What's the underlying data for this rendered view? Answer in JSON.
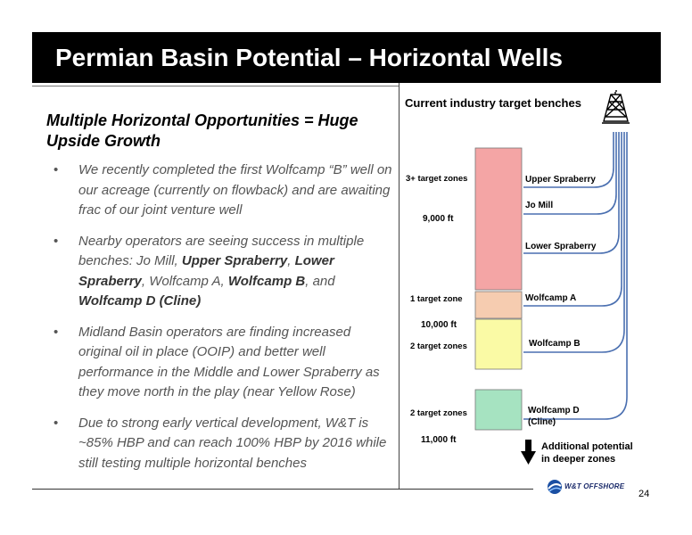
{
  "header": {
    "title": "Permian Basin Potential – Horizontal Wells"
  },
  "left": {
    "subtitle": "Multiple Horizontal Opportunities = Huge Upside Growth",
    "bullets": [
      {
        "text": "We recently completed the first Wolfcamp “B” well on our acreage (currently on flowback) and are awaiting frac of our joint venture well"
      },
      {
        "t1": "Nearby operators are seeing success in multiple benches:    Jo Mill, ",
        "b1": "Upper Spraberry",
        "t2": ", ",
        "b2": "Lower Spraberry",
        "t3": ", Wolfcamp A, ",
        "b3": "Wolfcamp B",
        "t4": ", and ",
        "b4": "Wolfcamp D (Cline)"
      },
      {
        "text": "Midland Basin operators are finding increased original oil in place (OOIP) and better well performance in the Middle and Lower Spraberry as they move north in the play (near Yellow Rose)"
      },
      {
        "text": "Due to strong early vertical development, W&T is ~85% HBP and can reach 100% HBP by 2016 while still testing multiple horizontal benches"
      }
    ]
  },
  "diagram": {
    "title": "Current industry target benches",
    "zones": [
      {
        "label": "3+ target zones",
        "color": "#f4a5a5"
      },
      {
        "label": "1 target zone",
        "color": "#f6ccb0"
      },
      {
        "label": "2 target zones",
        "color": "#fafaa5"
      },
      {
        "label": "2 target zones",
        "color": "#a6e3c1"
      }
    ],
    "depths": [
      "9,000 ft",
      "10,000 ft",
      "11,000 ft"
    ],
    "benches": [
      "Upper Spraberry",
      "Jo Mill",
      "Lower Spraberry",
      "Wolfcamp A",
      "Wolfcamp B",
      "Wolfcamp D (Cline)"
    ],
    "deeper_note": "Additional potential in deeper zones",
    "line_color": "#4a6fb0",
    "rig_icon": "oil-derrick-icon",
    "arrow_icon": "down-arrow-icon"
  },
  "footer": {
    "logo_text": "W&T OFFSHORE",
    "page_number": "24"
  }
}
